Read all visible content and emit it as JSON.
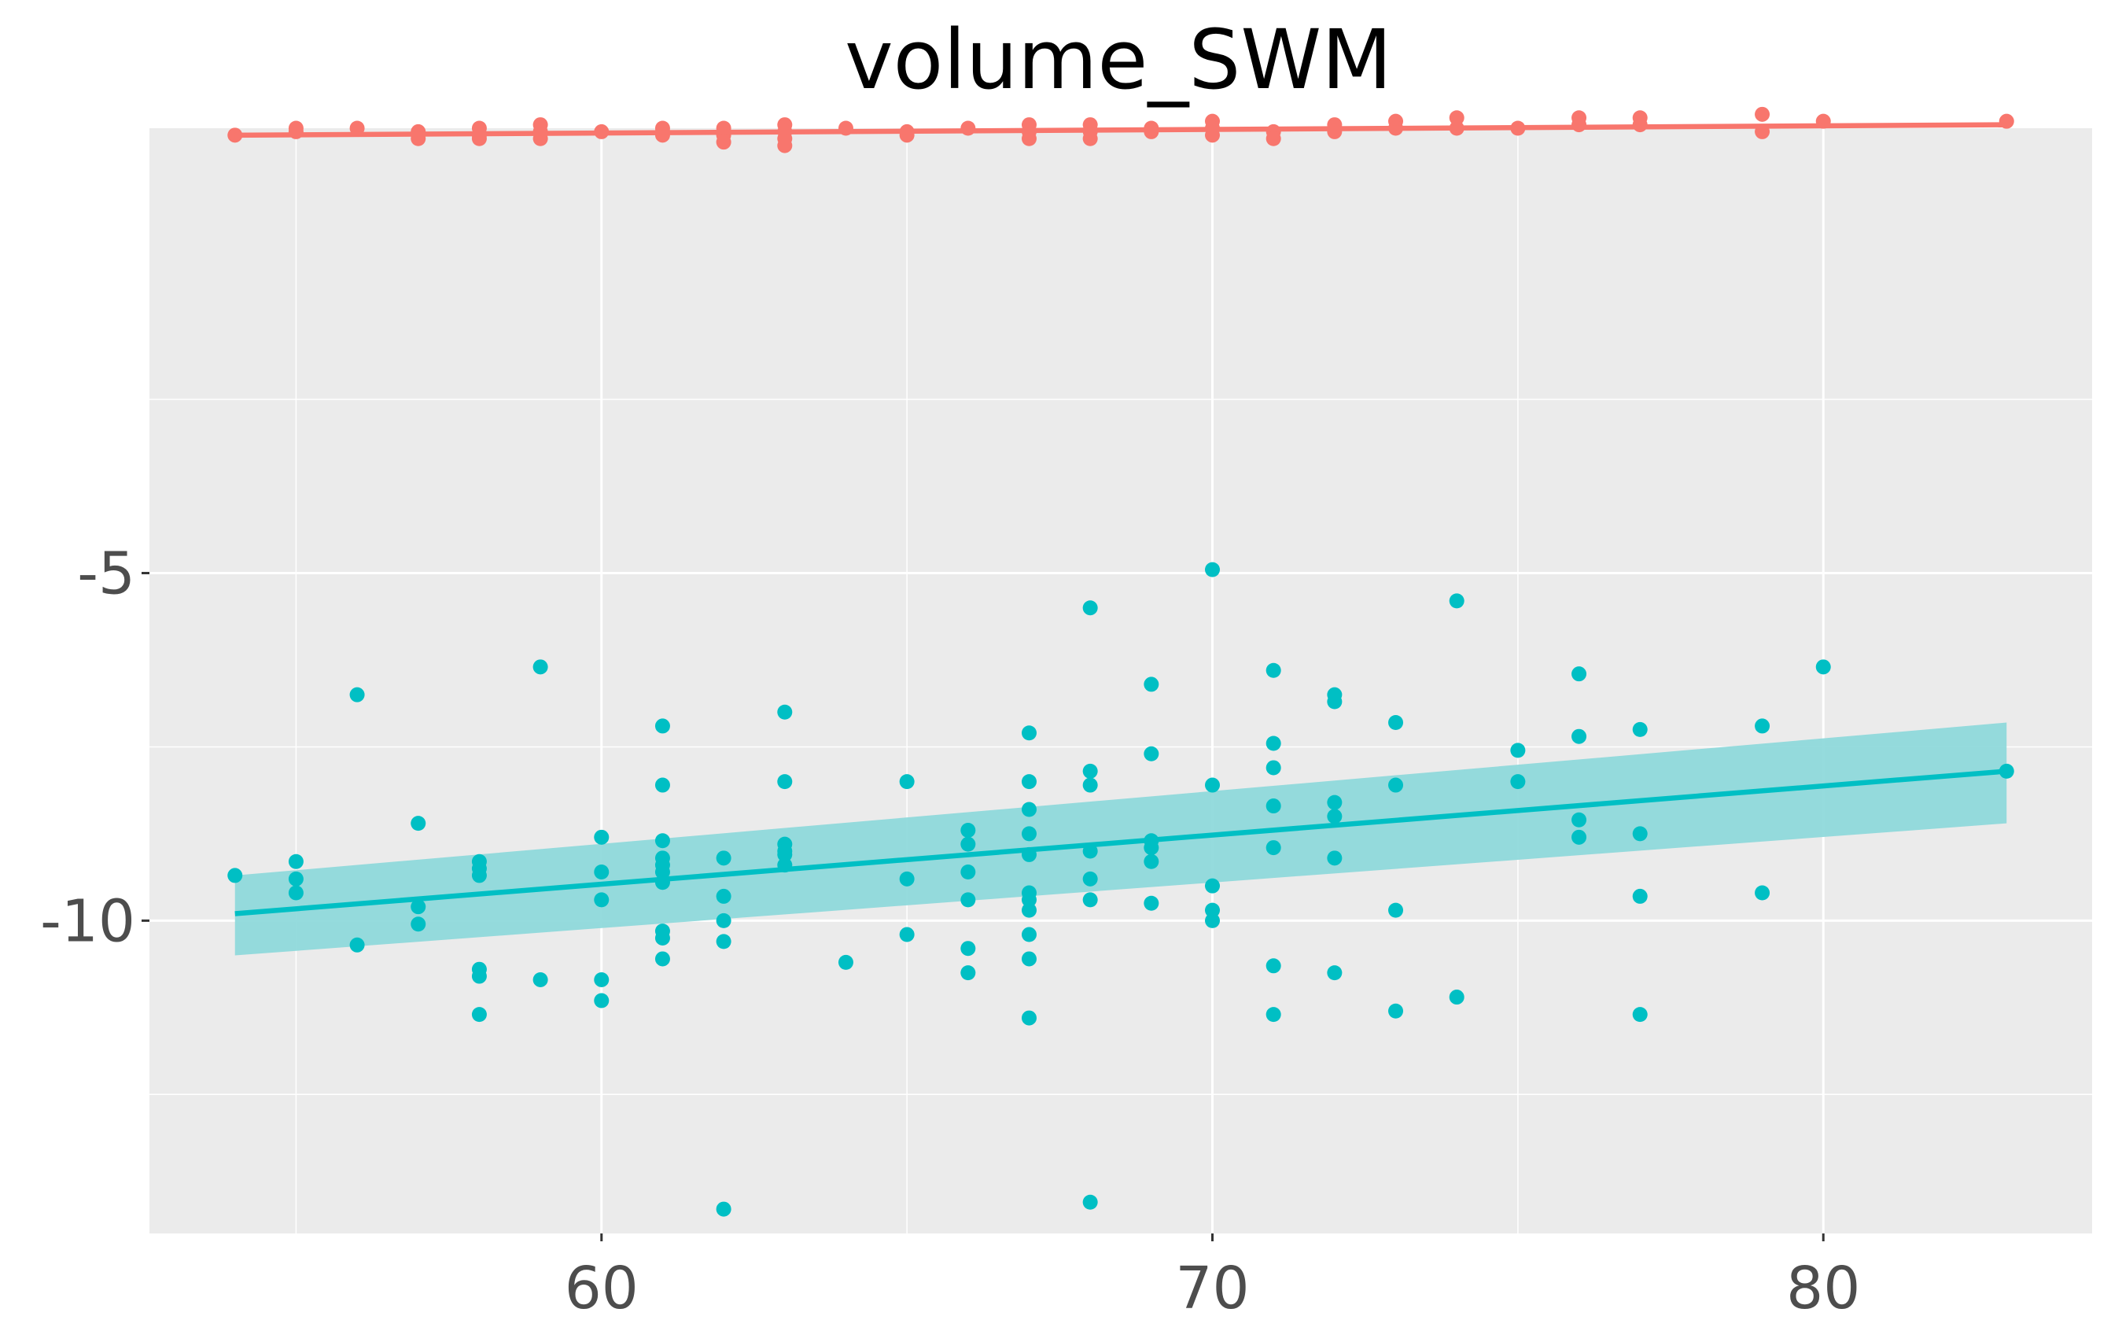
{
  "chart_data": {
    "type": "scatter",
    "title": "volume_SWM",
    "xlabel": "",
    "ylabel": "",
    "xlim": [
      52.6,
      84.4
    ],
    "ylim": [
      -14.5,
      1.4
    ],
    "x_ticks": [
      60,
      70,
      80
    ],
    "x_tick_labels": [
      "60",
      "70",
      "80"
    ],
    "y_ticks": [
      -5,
      -10
    ],
    "y_tick_labels": [
      "-5",
      "-10"
    ],
    "x_minor_ticks": [
      55,
      65,
      75
    ],
    "y_minor_ticks": [
      -2.5,
      -7.5,
      -12.5
    ],
    "grid": true,
    "legend": "none",
    "colors": {
      "panel_bg": "#ebebeb",
      "grid": "#ffffff",
      "series_top": "#f8766d",
      "series_bottom": "#00bfc4",
      "ribbon": "#8fd9db"
    },
    "series": [
      {
        "color": "#f8766d",
        "points": [
          [
            54,
            1.3
          ],
          [
            55,
            1.4
          ],
          [
            55,
            1.35
          ],
          [
            56,
            1.4
          ],
          [
            57,
            1.35
          ],
          [
            57,
            1.25
          ],
          [
            58,
            1.4
          ],
          [
            58,
            1.3
          ],
          [
            58,
            1.25
          ],
          [
            59,
            1.45
          ],
          [
            59,
            1.35
          ],
          [
            59,
            1.25
          ],
          [
            60,
            1.35
          ],
          [
            61,
            1.4
          ],
          [
            61,
            1.35
          ],
          [
            61,
            1.3
          ],
          [
            62,
            1.4
          ],
          [
            62,
            1.3
          ],
          [
            62,
            1.2
          ],
          [
            63,
            1.45
          ],
          [
            63,
            1.35
          ],
          [
            63,
            1.25
          ],
          [
            63,
            1.15
          ],
          [
            64,
            1.4
          ],
          [
            65,
            1.35
          ],
          [
            65,
            1.3
          ],
          [
            66,
            1.4
          ],
          [
            67,
            1.45
          ],
          [
            67,
            1.35
          ],
          [
            67,
            1.25
          ],
          [
            68,
            1.45
          ],
          [
            68,
            1.35
          ],
          [
            68,
            1.25
          ],
          [
            69,
            1.4
          ],
          [
            69,
            1.35
          ],
          [
            70,
            1.5
          ],
          [
            70,
            1.4
          ],
          [
            70,
            1.3
          ],
          [
            71,
            1.35
          ],
          [
            71,
            1.25
          ],
          [
            72,
            1.45
          ],
          [
            72,
            1.35
          ],
          [
            73,
            1.5
          ],
          [
            73,
            1.4
          ],
          [
            74,
            1.55
          ],
          [
            74,
            1.4
          ],
          [
            75,
            1.4
          ],
          [
            76,
            1.55
          ],
          [
            76,
            1.45
          ],
          [
            77,
            1.55
          ],
          [
            77,
            1.45
          ],
          [
            79,
            1.6
          ],
          [
            79,
            1.35
          ],
          [
            80,
            1.5
          ],
          [
            83,
            1.5
          ]
        ],
        "trend": {
          "x": [
            54,
            83
          ],
          "y": [
            1.3,
            1.45
          ]
        }
      },
      {
        "color": "#00bfc4",
        "points": [
          [
            54,
            -9.35
          ],
          [
            55,
            -9.15
          ],
          [
            55,
            -9.4
          ],
          [
            55,
            -9.6
          ],
          [
            56,
            -6.75
          ],
          [
            56,
            -10.35
          ],
          [
            57,
            -8.6
          ],
          [
            57,
            -9.8
          ],
          [
            57,
            -10.05
          ],
          [
            58,
            -9.15
          ],
          [
            58,
            -9.25
          ],
          [
            58,
            -9.35
          ],
          [
            58,
            -10.7
          ],
          [
            58,
            -10.8
          ],
          [
            58,
            -11.35
          ],
          [
            59,
            -6.35
          ],
          [
            59,
            -10.85
          ],
          [
            60,
            -8.8
          ],
          [
            60,
            -9.3
          ],
          [
            60,
            -9.7
          ],
          [
            60,
            -10.85
          ],
          [
            60,
            -11.15
          ],
          [
            61,
            -7.2
          ],
          [
            61,
            -8.05
          ],
          [
            61,
            -8.85
          ],
          [
            61,
            -9.1
          ],
          [
            61,
            -9.2
          ],
          [
            61,
            -9.3
          ],
          [
            61,
            -9.45
          ],
          [
            61,
            -10.15
          ],
          [
            61,
            -10.25
          ],
          [
            61,
            -10.55
          ],
          [
            62,
            -9.1
          ],
          [
            62,
            -9.65
          ],
          [
            62,
            -10.0
          ],
          [
            62,
            -10.3
          ],
          [
            62,
            -14.15
          ],
          [
            63,
            -7.0
          ],
          [
            63,
            -8.0
          ],
          [
            63,
            -8.9
          ],
          [
            63,
            -9.0
          ],
          [
            63,
            -9.05
          ],
          [
            63,
            -9.2
          ],
          [
            64,
            -10.6
          ],
          [
            65,
            -8.0
          ],
          [
            65,
            -9.4
          ],
          [
            65,
            -10.2
          ],
          [
            66,
            -8.7
          ],
          [
            66,
            -8.9
          ],
          [
            66,
            -9.3
          ],
          [
            66,
            -9.7
          ],
          [
            66,
            -10.4
          ],
          [
            66,
            -10.75
          ],
          [
            67,
            -7.3
          ],
          [
            67,
            -8.0
          ],
          [
            67,
            -8.4
          ],
          [
            67,
            -8.75
          ],
          [
            67,
            -9.05
          ],
          [
            67,
            -9.6
          ],
          [
            67,
            -9.7
          ],
          [
            67,
            -9.85
          ],
          [
            67,
            -10.2
          ],
          [
            67,
            -10.55
          ],
          [
            67,
            -11.4
          ],
          [
            68,
            -5.5
          ],
          [
            68,
            -7.85
          ],
          [
            68,
            -8.05
          ],
          [
            68,
            -9.0
          ],
          [
            68,
            -9.4
          ],
          [
            68,
            -9.7
          ],
          [
            68,
            -14.05
          ],
          [
            69,
            -6.6
          ],
          [
            69,
            -7.6
          ],
          [
            69,
            -8.85
          ],
          [
            69,
            -8.95
          ],
          [
            69,
            -9.15
          ],
          [
            69,
            -9.75
          ],
          [
            70,
            -4.95
          ],
          [
            70,
            -8.05
          ],
          [
            70,
            -9.5
          ],
          [
            70,
            -9.85
          ],
          [
            70,
            -10.0
          ],
          [
            71,
            -6.4
          ],
          [
            71,
            -7.45
          ],
          [
            71,
            -7.8
          ],
          [
            71,
            -8.35
          ],
          [
            71,
            -8.95
          ],
          [
            71,
            -10.65
          ],
          [
            71,
            -11.35
          ],
          [
            72,
            -6.75
          ],
          [
            72,
            -6.85
          ],
          [
            72,
            -8.3
          ],
          [
            72,
            -8.5
          ],
          [
            72,
            -9.1
          ],
          [
            72,
            -10.75
          ],
          [
            73,
            -7.15
          ],
          [
            73,
            -8.05
          ],
          [
            73,
            -9.85
          ],
          [
            73,
            -11.3
          ],
          [
            74,
            -5.4
          ],
          [
            74,
            -11.1
          ],
          [
            75,
            -7.55
          ],
          [
            75,
            -8.0
          ],
          [
            76,
            -6.45
          ],
          [
            76,
            -7.35
          ],
          [
            76,
            -8.55
          ],
          [
            76,
            -8.8
          ],
          [
            77,
            -7.25
          ],
          [
            77,
            -8.75
          ],
          [
            77,
            -9.65
          ],
          [
            77,
            -11.35
          ],
          [
            79,
            -7.2
          ],
          [
            79,
            -9.6
          ],
          [
            80,
            -6.35
          ],
          [
            83,
            -7.85
          ]
        ],
        "trend": {
          "x": [
            54,
            83
          ],
          "y": [
            -9.9,
            -7.85
          ]
        },
        "ribbon": {
          "x": [
            54,
            83
          ],
          "lower": [
            -10.5,
            -8.6
          ],
          "upper": [
            -9.35,
            -7.15
          ]
        }
      }
    ]
  }
}
